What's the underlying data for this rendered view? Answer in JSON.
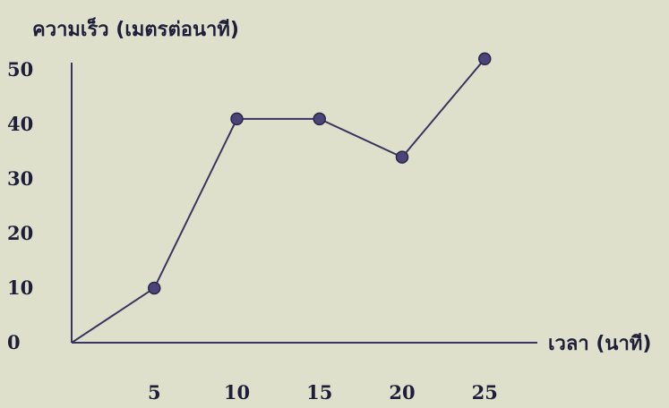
{
  "chart_data": {
    "type": "line",
    "ylabel": "ความเร็ว (เมตรต่อนาที)",
    "xlabel": "เวลา (นาที)",
    "x": [
      0,
      5,
      10,
      15,
      20,
      25
    ],
    "y": [
      0,
      10,
      41,
      41,
      34,
      52
    ],
    "xticks": [
      "5",
      "10",
      "15",
      "20",
      "25"
    ],
    "yticks": [
      "0",
      "10",
      "20",
      "30",
      "40",
      "50"
    ],
    "xlim": [
      0,
      27
    ],
    "ylim": [
      0,
      60
    ],
    "grid": false,
    "colors": {
      "line": "#3a3560",
      "marker": "#4a4478",
      "axis": "#3a3560",
      "text": "#1f1e3a",
      "background": "#dfe0cc"
    }
  }
}
